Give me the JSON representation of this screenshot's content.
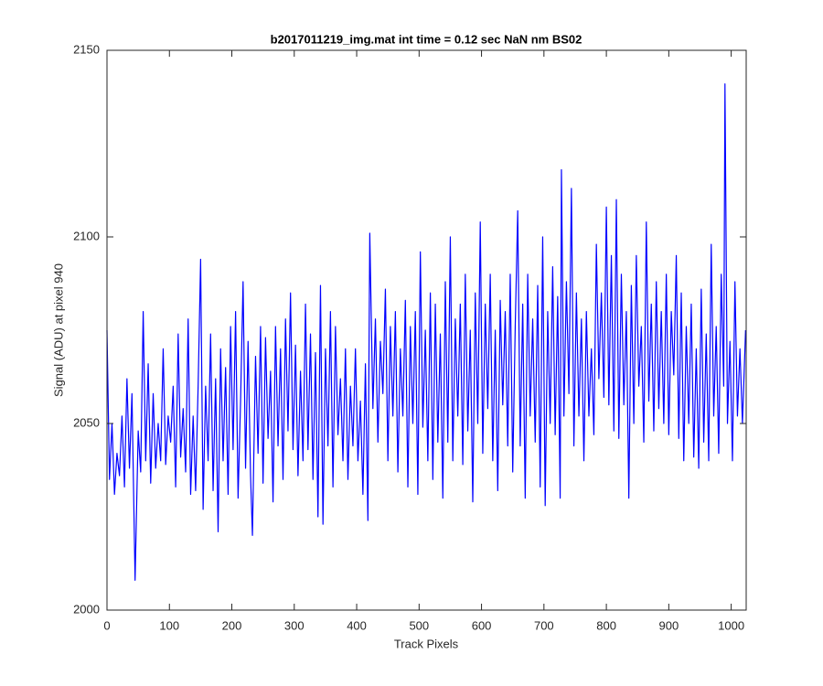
{
  "chart_data": {
    "type": "line",
    "title": "b2017011219_img.mat int time = 0.12 sec  NaN nm BS02",
    "xlabel": "Track Pixels",
    "ylabel": "Signal (ADU) at pixel 940",
    "xlim": [
      0,
      1024
    ],
    "ylim": [
      2000,
      2150
    ],
    "xticks": [
      0,
      100,
      200,
      300,
      400,
      500,
      600,
      700,
      800,
      900,
      1000
    ],
    "yticks": [
      2000,
      2050,
      2100,
      2150
    ],
    "grid": false,
    "x": [
      0,
      4,
      8,
      12,
      16,
      20,
      24,
      28,
      32,
      36,
      40,
      45,
      50,
      54,
      58,
      62,
      66,
      70,
      74,
      78,
      82,
      86,
      90,
      94,
      98,
      102,
      106,
      110,
      114,
      118,
      122,
      126,
      130,
      134,
      138,
      142,
      146,
      150,
      154,
      158,
      162,
      166,
      170,
      174,
      178,
      182,
      186,
      190,
      194,
      198,
      202,
      206,
      210,
      214,
      218,
      222,
      226,
      230,
      233,
      238,
      242,
      246,
      250,
      254,
      258,
      262,
      266,
      270,
      274,
      278,
      282,
      286,
      290,
      294,
      298,
      302,
      306,
      310,
      314,
      318,
      322,
      326,
      330,
      334,
      338,
      342,
      346,
      350,
      354,
      358,
      362,
      366,
      370,
      374,
      378,
      382,
      386,
      390,
      394,
      398,
      402,
      406,
      410,
      414,
      418,
      421,
      426,
      430,
      434,
      438,
      442,
      446,
      450,
      454,
      458,
      462,
      466,
      470,
      474,
      478,
      482,
      486,
      490,
      494,
      498,
      502,
      506,
      510,
      514,
      518,
      522,
      526,
      530,
      534,
      538,
      542,
      546,
      550,
      554,
      558,
      562,
      566,
      570,
      574,
      578,
      582,
      586,
      590,
      594,
      598,
      602,
      606,
      610,
      614,
      618,
      622,
      626,
      630,
      634,
      638,
      642,
      646,
      650,
      654,
      658,
      662,
      666,
      670,
      674,
      678,
      682,
      686,
      690,
      694,
      698,
      702,
      706,
      710,
      714,
      718,
      722,
      726,
      728,
      732,
      736,
      740,
      744,
      748,
      752,
      756,
      760,
      764,
      768,
      772,
      776,
      780,
      784,
      788,
      792,
      796,
      800,
      804,
      808,
      812,
      816,
      820,
      824,
      828,
      832,
      836,
      840,
      844,
      848,
      852,
      856,
      860,
      864,
      868,
      872,
      876,
      880,
      884,
      888,
      892,
      896,
      900,
      904,
      908,
      912,
      916,
      920,
      924,
      928,
      932,
      936,
      940,
      944,
      948,
      952,
      956,
      960,
      964,
      968,
      972,
      976,
      980,
      984,
      988,
      990,
      994,
      998,
      1002,
      1006,
      1010,
      1014,
      1018,
      1023
    ],
    "series": [
      {
        "color": "#0000ff",
        "values": [
          2075,
          2035,
          2050,
          2031,
          2042,
          2036,
          2052,
          2033,
          2062,
          2038,
          2058,
          2008,
          2048,
          2037,
          2080,
          2040,
          2066,
          2034,
          2058,
          2038,
          2050,
          2040,
          2070,
          2039,
          2052,
          2045,
          2060,
          2033,
          2074,
          2041,
          2054,
          2037,
          2078,
          2031,
          2052,
          2032,
          2060,
          2094,
          2027,
          2060,
          2040,
          2074,
          2032,
          2062,
          2021,
          2070,
          2040,
          2065,
          2031,
          2076,
          2043,
          2080,
          2030,
          2056,
          2088,
          2038,
          2072,
          2036,
          2020,
          2068,
          2042,
          2076,
          2034,
          2073,
          2046,
          2064,
          2029,
          2076,
          2044,
          2070,
          2035,
          2078,
          2048,
          2085,
          2043,
          2071,
          2036,
          2064,
          2040,
          2082,
          2043,
          2074,
          2035,
          2069,
          2025,
          2087,
          2023,
          2070,
          2044,
          2080,
          2033,
          2076,
          2047,
          2062,
          2040,
          2070,
          2035,
          2060,
          2044,
          2070,
          2040,
          2056,
          2031,
          2066,
          2024,
          2101,
          2054,
          2078,
          2045,
          2072,
          2058,
          2086,
          2040,
          2076,
          2052,
          2080,
          2037,
          2070,
          2052,
          2083,
          2033,
          2076,
          2050,
          2080,
          2031,
          2096,
          2049,
          2075,
          2040,
          2085,
          2035,
          2082,
          2045,
          2074,
          2030,
          2088,
          2045,
          2100,
          2040,
          2078,
          2052,
          2082,
          2039,
          2090,
          2048,
          2075,
          2029,
          2085,
          2050,
          2104,
          2042,
          2082,
          2054,
          2090,
          2040,
          2075,
          2032,
          2083,
          2055,
          2080,
          2044,
          2090,
          2037,
          2076,
          2107,
          2044,
          2082,
          2030,
          2090,
          2052,
          2078,
          2045,
          2087,
          2033,
          2100,
          2028,
          2080,
          2050,
          2092,
          2047,
          2084,
          2030,
          2118,
          2052,
          2088,
          2058,
          2113,
          2044,
          2085,
          2052,
          2078,
          2040,
          2080,
          2052,
          2070,
          2047,
          2098,
          2062,
          2085,
          2057,
          2108,
          2055,
          2095,
          2048,
          2110,
          2046,
          2090,
          2055,
          2080,
          2030,
          2087,
          2050,
          2095,
          2060,
          2076,
          2045,
          2104,
          2056,
          2082,
          2048,
          2088,
          2054,
          2080,
          2050,
          2090,
          2047,
          2080,
          2063,
          2095,
          2046,
          2085,
          2040,
          2076,
          2050,
          2082,
          2041,
          2070,
          2038,
          2086,
          2045,
          2074,
          2040,
          2098,
          2052,
          2076,
          2042,
          2090,
          2060,
          2141,
          2050,
          2072,
          2040,
          2088,
          2052,
          2070,
          2050,
          2075
        ]
      }
    ]
  }
}
